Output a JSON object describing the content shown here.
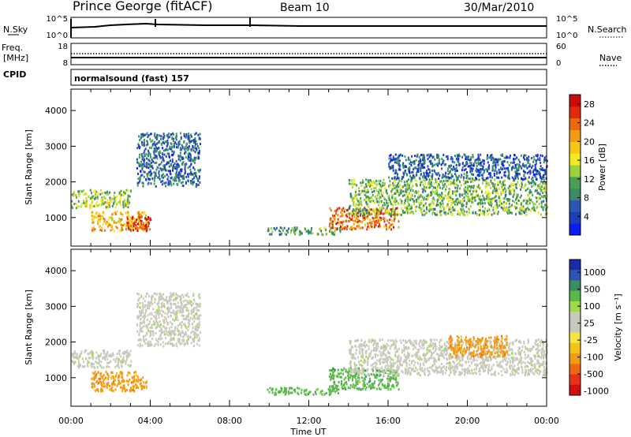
{
  "header": {
    "station": "Prince George (fitACF)",
    "beam": "Beam 10",
    "date": "30/Mar/2010"
  },
  "top_panel": {
    "left_label": "N.Sky",
    "left_ticks": [
      "10^5",
      "10^0"
    ],
    "right_ticks": [
      "10^5",
      "10^0"
    ],
    "right_label": "N.Search"
  },
  "freq_panel": {
    "left_label_1": "Freq.",
    "left_label_2": "[MHz]",
    "left_ticks": [
      "18",
      "8"
    ],
    "right_ticks": [
      "60",
      "0"
    ],
    "right_label": "Nave"
  },
  "cpid_panel": {
    "label": "CPID",
    "value": "normalsound (fast) 157"
  },
  "colors": {
    "power": [
      "#0b1cf5",
      "#1a3fb8",
      "#2a58b0",
      "#3a8a68",
      "#4a9e58",
      "#9ad23c",
      "#f0ea1e",
      "#f5c716",
      "#f29a10",
      "#ec6a0e",
      "#e02a0a",
      "#cc0a0a"
    ],
    "velocity": [
      "#1a2aa8",
      "#2a55b5",
      "#3a8f62",
      "#58b848",
      "#9edb4a",
      "#c8c8bc",
      "#c8c8bc",
      "#f2e640",
      "#f5c216",
      "#f49a10",
      "#ee6a10",
      "#e8321a",
      "#d40f10"
    ]
  },
  "chart_data": [
    {
      "type": "heatmap",
      "title": "Power",
      "ylabel": "Slant Range [km]",
      "ylim": [
        200,
        4600
      ],
      "yticks": [
        "1000",
        "2000",
        "3000",
        "4000"
      ],
      "xlim": [
        "00:00",
        "24:00"
      ],
      "colorbar_label": "Power [dB]",
      "colorbar_ticks": [
        "4",
        "8",
        "12",
        "16",
        "20",
        "24",
        "28"
      ],
      "colorbar_range": [
        0,
        30
      ],
      "echo_regions": [
        {
          "t_start": 0.0,
          "t_end": 3.0,
          "r_start": 1300,
          "r_end": 1800,
          "level": 14
        },
        {
          "t_start": 1.0,
          "t_end": 3.8,
          "r_start": 650,
          "r_end": 1200,
          "level": 20
        },
        {
          "t_start": 2.8,
          "t_end": 4.0,
          "r_start": 650,
          "r_end": 1050,
          "level": 28
        },
        {
          "t_start": 3.3,
          "t_end": 6.5,
          "r_start": 1900,
          "r_end": 3400,
          "level": 6
        },
        {
          "t_start": 9.8,
          "t_end": 13.6,
          "r_start": 550,
          "r_end": 750,
          "level": 10
        },
        {
          "t_start": 13.0,
          "t_end": 16.5,
          "r_start": 700,
          "r_end": 1300,
          "level": 24
        },
        {
          "t_start": 14.0,
          "t_end": 24.0,
          "r_start": 1100,
          "r_end": 2100,
          "level": 12
        },
        {
          "t_start": 16.0,
          "t_end": 24.0,
          "r_start": 2100,
          "r_end": 2800,
          "level": 5
        }
      ]
    },
    {
      "type": "heatmap",
      "title": "Velocity",
      "ylabel": "Slant Range [km]",
      "ylim": [
        200,
        4600
      ],
      "yticks": [
        "1000",
        "2000",
        "3000",
        "4000"
      ],
      "xlim": [
        "00:00",
        "24:00"
      ],
      "xticks": [
        "00:00",
        "04:00",
        "08:00",
        "12:00",
        "16:00",
        "20:00",
        "00:00"
      ],
      "xlabel": "Time UT",
      "colorbar_label": "Velocity [m s⁻¹]",
      "colorbar_ticks": [
        "1000",
        "500",
        "100",
        "25",
        "-25",
        "-100",
        "-500",
        "-1000"
      ],
      "echo_regions": [
        {
          "t_start": 0.0,
          "t_end": 3.0,
          "r_start": 1300,
          "r_end": 1800,
          "velocity": 0
        },
        {
          "t_start": 1.0,
          "t_end": 3.8,
          "r_start": 650,
          "r_end": 1200,
          "velocity": -150
        },
        {
          "t_start": 3.3,
          "t_end": 6.5,
          "r_start": 1900,
          "r_end": 3400,
          "velocity": 0
        },
        {
          "t_start": 9.8,
          "t_end": 13.6,
          "r_start": 550,
          "r_end": 750,
          "velocity": 80
        },
        {
          "t_start": 13.0,
          "t_end": 16.5,
          "r_start": 700,
          "r_end": 1300,
          "velocity": 60
        },
        {
          "t_start": 14.0,
          "t_end": 24.0,
          "r_start": 1100,
          "r_end": 2100,
          "velocity": 0
        },
        {
          "t_start": 19.0,
          "t_end": 22.0,
          "r_start": 1600,
          "r_end": 2200,
          "velocity": -300
        }
      ]
    }
  ]
}
